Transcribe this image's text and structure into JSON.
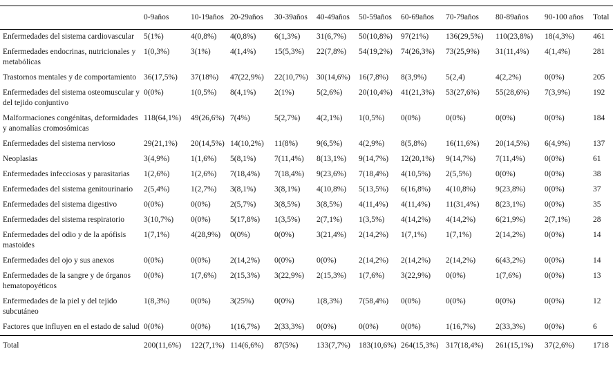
{
  "colors": {
    "background": "#ffffff",
    "text": "#1a1a1a",
    "rule": "#000000"
  },
  "table": {
    "corner_label": "",
    "columns": [
      "0-9años",
      "10-19años",
      "20-29años",
      "30-39años",
      "40-49años",
      "50-59años",
      "60-69años",
      "70-79años",
      "80-89años",
      "90-100 años",
      "Total"
    ],
    "rows": [
      {
        "label": "Enfermedades del sistema cardiovascular",
        "values": [
          "5(1%)",
          "4(0,8%)",
          "4(0,8%)",
          "6(1,3%)",
          "31(6,7%)",
          "50(10,8%)",
          "97(21%)",
          "136(29,5%)",
          "110(23,8%)",
          "18(4,3%)"
        ],
        "total": "461"
      },
      {
        "label": "Enfermedades endocrinas, nutricionales y metabólicas",
        "values": [
          "1(0,3%)",
          "3(1%)",
          "4(1,4%)",
          "15(5,3%)",
          "22(7,8%)",
          "54(19,2%)",
          "74(26,3%)",
          "73(25,9%)",
          "31(11,4%)",
          "4(1,4%)"
        ],
        "total": "281"
      },
      {
        "label": "Trastornos mentales y de comportamiento",
        "values": [
          "36(17,5%)",
          "37(18%)",
          "47(22,9%)",
          "22(10,7%)",
          "30(14,6%)",
          "16(7,8%)",
          "8(3,9%)",
          "5(2,4)",
          "4(2,2%)",
          "0(0%)"
        ],
        "total": "205"
      },
      {
        "label": "Enfermedades del sistema osteomuscular y del tejido conjuntivo",
        "values": [
          "0(0%)",
          "1(0,5%)",
          "8(4,1%)",
          "2(1%)",
          "5(2,6%)",
          "20(10,4%)",
          "41(21,3%)",
          "53(27,6%)",
          "55(28,6%)",
          "7(3,9%)"
        ],
        "total": "192"
      },
      {
        "label": "Malformaciones congénitas, deformidades y anomalías cromosómicas",
        "values": [
          "118(64,1%)",
          "49(26,6%)",
          "7(4%)",
          "5(2,7%)",
          "4(2,1%)",
          "1(0,5%)",
          "0(0%)",
          "0(0%)",
          "0(0%)",
          "0(0%)"
        ],
        "total": "184"
      },
      {
        "label": "Enfermedades del sistema nervioso",
        "values": [
          "29(21,1%)",
          "20(14,5%)",
          "14(10,2%)",
          "11(8%)",
          "9(6,5%)",
          "4(2,9%)",
          "8(5,8%)",
          "16(11,6%)",
          "20(14,5%)",
          "6(4,9%)"
        ],
        "total": "137"
      },
      {
        "label": "Neoplasias",
        "values": [
          "3(4,9%)",
          "1(1,6%)",
          "5(8,1%)",
          "7(11,4%)",
          "8(13,1%)",
          "9(14,7%)",
          "12(20,1%)",
          "9(14,7%)",
          "7(11,4%)",
          "0(0%)"
        ],
        "total": "61"
      },
      {
        "label": "Enfermedades infecciosas y parasitarias",
        "values": [
          "1(2,6%)",
          "1(2,6%)",
          "7(18,4%)",
          "7(18,4%)",
          "9(23,6%)",
          "7(18,4%)",
          "4(10,5%)",
          "2(5,5%)",
          "0(0%)",
          "0(0%)"
        ],
        "total": "38"
      },
      {
        "label": "Enfermedades del sistema genitourinario",
        "values": [
          "2(5,4%)",
          "1(2,7%)",
          "3(8,1%)",
          "3(8,1%)",
          "4(10,8%)",
          "5(13,5%)",
          "6(16,8%)",
          "4(10,8%)",
          "9(23,8%)",
          "0(0%)"
        ],
        "total": "37"
      },
      {
        "label": "Enfermedades del sistema digestivo",
        "values": [
          "0(0%)",
          "0(0%)",
          "2(5,7%)",
          "3(8,5%)",
          "3(8,5%)",
          "4(11,4%)",
          "4(11,4%)",
          "11(31,4%)",
          "8(23,1%)",
          "0(0%)"
        ],
        "total": "35"
      },
      {
        "label": "Enfermedades del sistema respiratorio",
        "values": [
          "3(10,7%)",
          "0(0%)",
          "5(17,8%)",
          "1(3,5%)",
          "2(7,1%)",
          "1(3,5%)",
          "4(14,2%)",
          "4(14,2%)",
          "6(21,9%)",
          "2(7,1%)"
        ],
        "total": "28"
      },
      {
        "label": "Enfermedades del odio y de la apófisis mastoides",
        "values": [
          "1(7,1%)",
          "4(28,9%)",
          "0(0%)",
          "0(0%)",
          "3(21,4%)",
          "2(14,2%)",
          "1(7,1%)",
          "1(7,1%)",
          "2(14,2%)",
          "0(0%)"
        ],
        "total": "14"
      },
      {
        "label": "Enfermedades del ojo y sus anexos",
        "values": [
          "0(0%)",
          "0(0%)",
          "2(14,2%)",
          "0(0%)",
          "0(0%)",
          "2(14,2%)",
          "2(14,2%)",
          "2(14,2%)",
          "6(43,2%)",
          "0(0%)"
        ],
        "total": "14"
      },
      {
        "label": "Enfermedades de la sangre y de órganos hematopoyéticos",
        "values": [
          "0(0%)",
          "1(7,6%)",
          "2(15,3%)",
          "3(22,9%)",
          "2(15,3%)",
          "1(7,6%)",
          "3(22,9%)",
          "0(0%)",
          "1(7,6%)",
          "0(0%)"
        ],
        "total": "13"
      },
      {
        "label": "Enfermedades de la piel y del tejido subcutáneo",
        "values": [
          "1(8,3%)",
          "0(0%)",
          "3(25%)",
          "0(0%)",
          "1(8,3%)",
          "7(58,4%)",
          "0(0%)",
          "0(0%)",
          "0(0%)",
          "0(0%)"
        ],
        "total": "12"
      },
      {
        "label": "Factores que influyen en el estado de salud",
        "values": [
          "0(0%)",
          "0(0%)",
          "1(16,7%)",
          "2(33,3%)",
          "0(0%)",
          "0(0%)",
          "0(0%)",
          "1(16,7%)",
          "2(33,3%)",
          "0(0%)"
        ],
        "total": "6"
      }
    ],
    "total_row": {
      "label": "Total",
      "values": [
        "200(11,6%)",
        "122(7,1%)",
        "114(6,6%)",
        "87(5%)",
        "133(7,7%)",
        "183(10,6%)",
        "264(15,3%)",
        "317(18,4%)",
        "261(15,1%)",
        "37(2,6%)"
      ],
      "total": "1718"
    }
  }
}
